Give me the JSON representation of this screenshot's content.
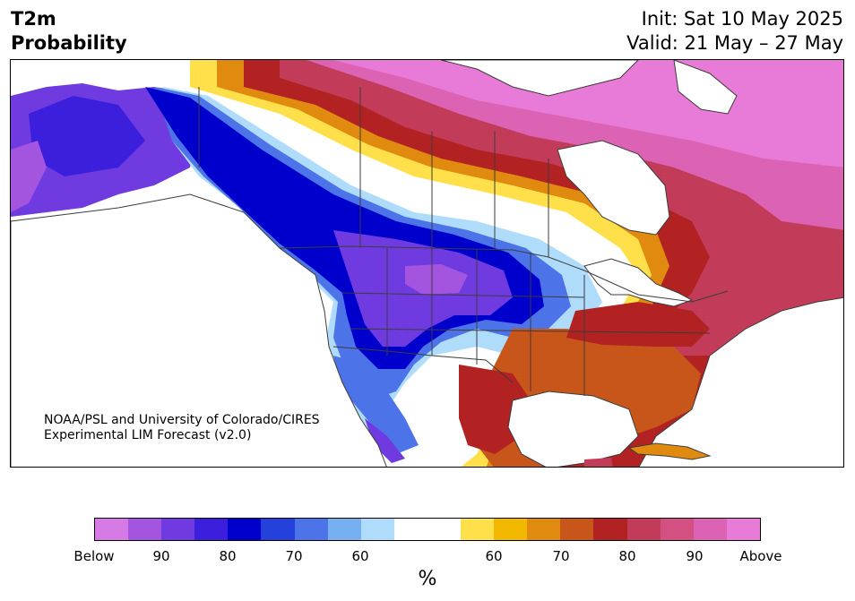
{
  "header": {
    "title_line1": "T2m",
    "title_line2": "Probability",
    "init": "Init: Sat 10 May 2025",
    "valid": "Valid: 21 May – 27 May"
  },
  "credit": {
    "line1": "NOAA/PSL and University of Colorado/CIRES",
    "line2": "Experimental LIM Forecast (v2.0)"
  },
  "colorbar": {
    "below_colors": [
      "#d67ae6",
      "#a355e0",
      "#6f3be0",
      "#3b1fdc",
      "#0000cc",
      "#2441dc",
      "#4c74e8",
      "#75aff0",
      "#b0dcfc"
    ],
    "neutral_color": "#ffffff",
    "above_colors": [
      "#ffe04a",
      "#f2b800",
      "#e08a10",
      "#c8561a",
      "#b32222",
      "#c23c5a",
      "#d25082",
      "#dc62b4",
      "#e87ad8"
    ],
    "tick_labels": [
      "Below",
      "90",
      "80",
      "70",
      "60",
      "60",
      "70",
      "80",
      "90",
      "Above"
    ],
    "unit": "%"
  },
  "map_colors": {
    "land_base": "#ffffff",
    "border_color": "#3c3c3c"
  }
}
